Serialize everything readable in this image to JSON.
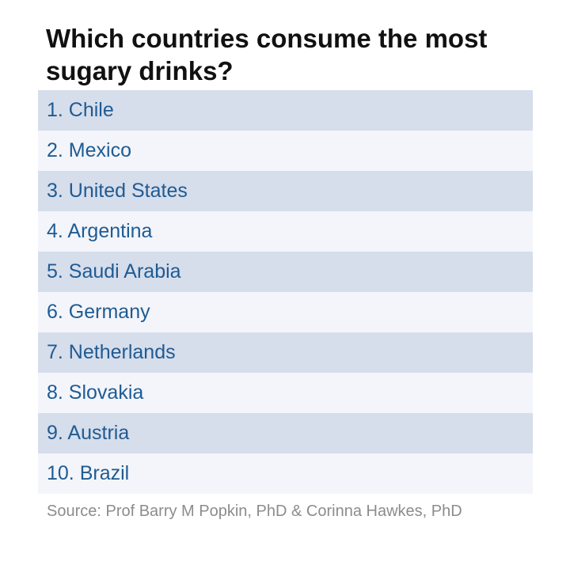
{
  "chart_data": {
    "type": "table",
    "title": "Which countries consume the most sugary drinks?",
    "rows": [
      "1. Chile",
      "2. Mexico",
      "3. United States",
      "4. Argentina",
      "5. Saudi Arabia",
      "6. Germany",
      "7. Netherlands",
      "8. Slovakia",
      "9. Austria",
      "10. Brazil"
    ],
    "source": "Source: Prof Barry M Popkin, PhD & Corinna Hawkes, PhD",
    "colors": {
      "row_dark": "#d6ddeb",
      "row_light": "#f3f5fa",
      "row_text": "#1f5b93"
    }
  }
}
